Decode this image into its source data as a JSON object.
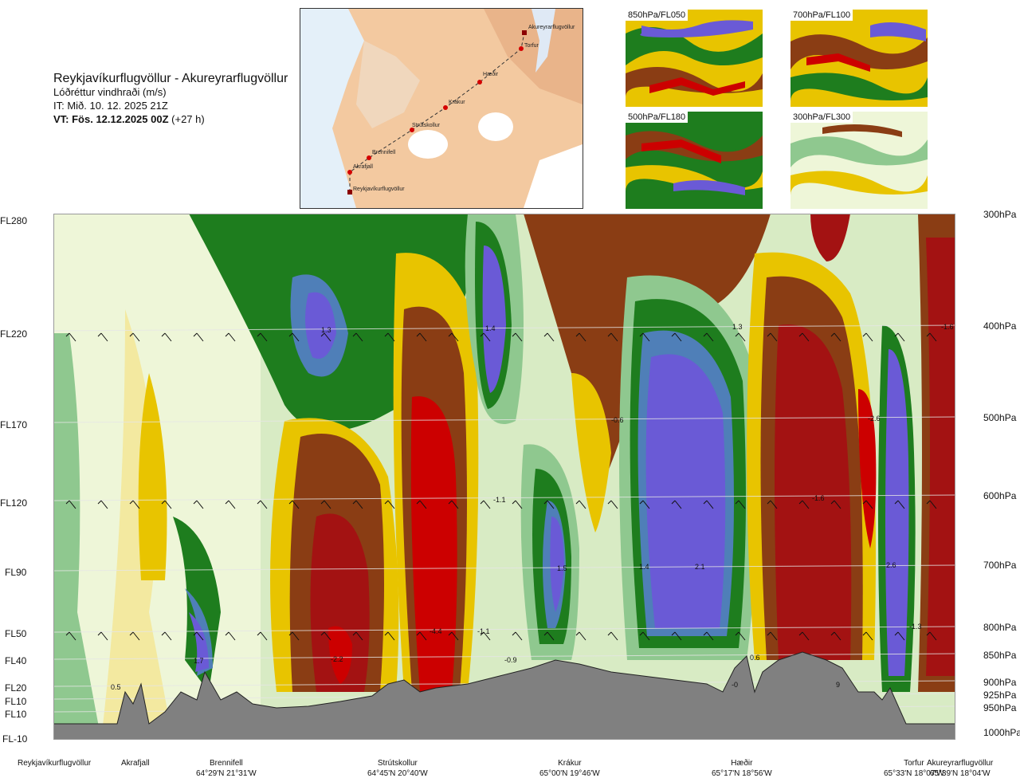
{
  "header": {
    "title": "Reykjavíkurflugvöllur - Akureyrarflugvöllur",
    "subtitle": "Lóðréttur vindhraði (m/s)",
    "it": "IT: Mið. 10. 12. 2025 21Z",
    "vt_bold": "VT: Fös. 12.12.2025 00Z",
    "vt_rest": " (+27 h)"
  },
  "map": {
    "stations": [
      "Akureyrarflugvöllur",
      "Torfur",
      "Hæðir",
      "Krákur",
      "Strútskollur",
      "Brennifell",
      "Akrafjall",
      "Reykjavíkurflugvöllur"
    ]
  },
  "thumbnails": [
    {
      "label": "850hPa/FL050"
    },
    {
      "label": "700hPa/FL100"
    },
    {
      "label": "500hPa/FL180"
    },
    {
      "label": "300hPa/FL300"
    }
  ],
  "chart_data": {
    "type": "heatmap",
    "title": "Lóðréttur vindhraði (m/s)",
    "y_left_ticks": [
      "FL280",
      "FL220",
      "FL170",
      "FL120",
      "FL90",
      "FL50",
      "FL40",
      "FL20",
      "FL10",
      "FL10",
      "FL-10"
    ],
    "y_right_ticks": [
      "300hPa",
      "400hPa",
      "500hPa",
      "600hPa",
      "700hPa",
      "800hPa",
      "850hPa",
      "900hPa",
      "925hPa",
      "950hPa",
      "1000hPa"
    ],
    "x_locations": [
      {
        "name": "Reykjavíkurflugvöllur",
        "coord": ""
      },
      {
        "name": "Akrafjall",
        "coord": ""
      },
      {
        "name": "Brennifell",
        "coord": "64°29'N 21°31'W"
      },
      {
        "name": "Strútskollur",
        "coord": "64°45'N 20°40'W"
      },
      {
        "name": "Krákur",
        "coord": "65°00'N 19°46'W"
      },
      {
        "name": "Hæðir",
        "coord": "65°17'N 18°56'W"
      },
      {
        "name": "Torfur",
        "coord": "65°33'N 18°07'W"
      },
      {
        "name": "Akureyrarflugvöllur",
        "coord": "65°39'N 18°04'W"
      }
    ],
    "annotations": [
      "1.3",
      "1.4",
      "1.3",
      "-1.6",
      "-0.6",
      "-2.6",
      "-1.1",
      "-1.6",
      "1.5",
      "1.4",
      "2.1",
      "2.6",
      "-4.4",
      "-1.1",
      "-1.3",
      "1.7",
      "-2.2",
      "-0.9",
      "0.5",
      "0.6",
      "-0",
      "9"
    ],
    "colors": {
      "strong_up": "#6a5ad6",
      "up": "#4f7fb8",
      "weak_up": "#1e7d1e",
      "neutral": "#eef6d8",
      "weak_down": "#e8c400",
      "down": "#8a3d14",
      "strong_down": "#cc0000",
      "terrain": "#808080"
    }
  }
}
